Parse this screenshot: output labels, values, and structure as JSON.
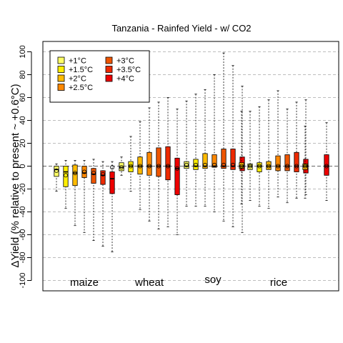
{
  "chart_data": {
    "type": "boxplot",
    "title": "Tanzania - Rainfed Yield - w/ CO2",
    "ylabel": "ΔYield (% relative to present ~ +0.6°C)",
    "ylim": [
      -105,
      105
    ],
    "yticks": [
      100,
      80,
      60,
      40,
      20,
      0,
      -20,
      -40,
      -60,
      -80,
      -100
    ],
    "grid": "horizontal dashed",
    "legend_position": "top-left",
    "legend": [
      {
        "label": "+1°C",
        "color": "#ffff66"
      },
      {
        "label": "+1.5°C",
        "color": "#ffee00"
      },
      {
        "label": "+2°C",
        "color": "#ffbb00"
      },
      {
        "label": "+2.5°C",
        "color": "#ff8800"
      },
      {
        "label": "+3°C",
        "color": "#ee5500"
      },
      {
        "label": "+3.5°C",
        "color": "#ee2a00"
      },
      {
        "label": "+4°C",
        "color": "#ee0000"
      }
    ],
    "crops": [
      {
        "name": "maize",
        "boxes": [
          {
            "level": 0,
            "min": -22,
            "q1": -9,
            "median": -3,
            "q3": 0,
            "max": 2,
            "mean": -4
          },
          {
            "level": 1,
            "min": -37,
            "q1": -18,
            "median": -5,
            "q3": 0,
            "max": 5,
            "mean": -8
          },
          {
            "level": 2,
            "min": -52,
            "q1": -17,
            "median": -6,
            "q3": 1,
            "max": 5,
            "mean": -6
          },
          {
            "level": 3,
            "min": -58,
            "q1": -10,
            "median": -6,
            "q3": 0,
            "max": 5,
            "mean": -5
          },
          {
            "level": 4,
            "min": -65,
            "q1": -15,
            "median": -7,
            "q3": -2,
            "max": 6,
            "mean": -6
          },
          {
            "level": 5,
            "min": -70,
            "q1": -16,
            "median": -8,
            "q3": -4,
            "max": 4,
            "mean": -7
          },
          {
            "level": 6,
            "min": -75,
            "q1": -24,
            "median": -11,
            "q3": -5,
            "max": 4,
            "mean": -1
          }
        ]
      },
      {
        "name": "wheat",
        "boxes": [
          {
            "level": 0,
            "min": -8,
            "q1": -4,
            "median": -1,
            "q3": 3,
            "max": 8,
            "mean": -1
          },
          {
            "level": 1,
            "min": -22,
            "q1": -5,
            "median": 0,
            "q3": 4,
            "max": 26,
            "mean": 0
          },
          {
            "level": 2,
            "min": -38,
            "q1": -7,
            "median": 0,
            "q3": 8,
            "max": 39,
            "mean": 0
          },
          {
            "level": 3,
            "min": -48,
            "q1": -8,
            "median": 0,
            "q3": 12,
            "max": 51,
            "mean": 0
          },
          {
            "level": 4,
            "min": -55,
            "q1": -9,
            "median": 0,
            "q3": 16,
            "max": 56,
            "mean": 0
          },
          {
            "level": 5,
            "min": -53,
            "q1": -12,
            "median": 0,
            "q3": 17,
            "max": 60,
            "mean": 0
          },
          {
            "level": 6,
            "min": -60,
            "q1": -25,
            "median": -2,
            "q3": 7,
            "max": 50,
            "mean": -2
          }
        ]
      },
      {
        "name": "soy",
        "boxes": [
          {
            "level": 0,
            "min": -35,
            "q1": -2,
            "median": 0,
            "q3": 4,
            "max": 57,
            "mean": 1
          },
          {
            "level": 1,
            "min": -35,
            "q1": -3,
            "median": 0,
            "q3": 6,
            "max": 63,
            "mean": 1
          },
          {
            "level": 2,
            "min": -35,
            "q1": -2,
            "median": 0,
            "q3": 11,
            "max": 67,
            "mean": 1
          },
          {
            "level": 3,
            "min": -40,
            "q1": -1,
            "median": 0,
            "q3": 10,
            "max": 80,
            "mean": 1
          },
          {
            "level": 4,
            "min": -48,
            "q1": -2,
            "median": 0,
            "q3": 15,
            "max": 99,
            "mean": 1
          },
          {
            "level": 5,
            "min": -53,
            "q1": -3,
            "median": 0,
            "q3": 15,
            "max": 88,
            "mean": 1
          },
          {
            "level": 6,
            "min": -58,
            "q1": -4,
            "median": 0,
            "q3": 8,
            "max": 70,
            "mean": 1
          }
        ]
      },
      {
        "name": "rice",
        "boxes": [
          {
            "level": 0,
            "min": -30,
            "q1": -3,
            "median": 0,
            "q3": 2,
            "max": 48,
            "mean": 0
          },
          {
            "level": 1,
            "min": -35,
            "q1": -5,
            "median": 0,
            "q3": 3,
            "max": 52,
            "mean": 0
          },
          {
            "level": 2,
            "min": -37,
            "q1": -3,
            "median": 0,
            "q3": 4,
            "max": 58,
            "mean": 0
          },
          {
            "level": 3,
            "min": -27,
            "q1": -4,
            "median": 0,
            "q3": 9,
            "max": 66,
            "mean": 0
          },
          {
            "level": 4,
            "min": -32,
            "q1": -4,
            "median": 0,
            "q3": 10,
            "max": 50,
            "mean": 0
          },
          {
            "level": 5,
            "min": -28,
            "q1": -5,
            "median": 0,
            "q3": 12,
            "max": 56,
            "mean": 0
          },
          {
            "level": 6,
            "min": -25,
            "q1": -6,
            "median": 0,
            "q3": 6,
            "max": 58,
            "mean": 0
          }
        ]
      }
    ],
    "extra_boxes": [
      {
        "crop": "soy",
        "min": -33,
        "q1": -2,
        "median": 0,
        "q3": 3,
        "max": 48,
        "mean": 0
      },
      {
        "crop": "rice",
        "min": -28,
        "q1": -3,
        "median": 0,
        "q3": 2,
        "max": 35,
        "mean": 0
      },
      {
        "crop": "rice",
        "min": -30,
        "q1": -8,
        "median": 0,
        "q3": 10,
        "max": 38,
        "mean": 0
      }
    ]
  }
}
